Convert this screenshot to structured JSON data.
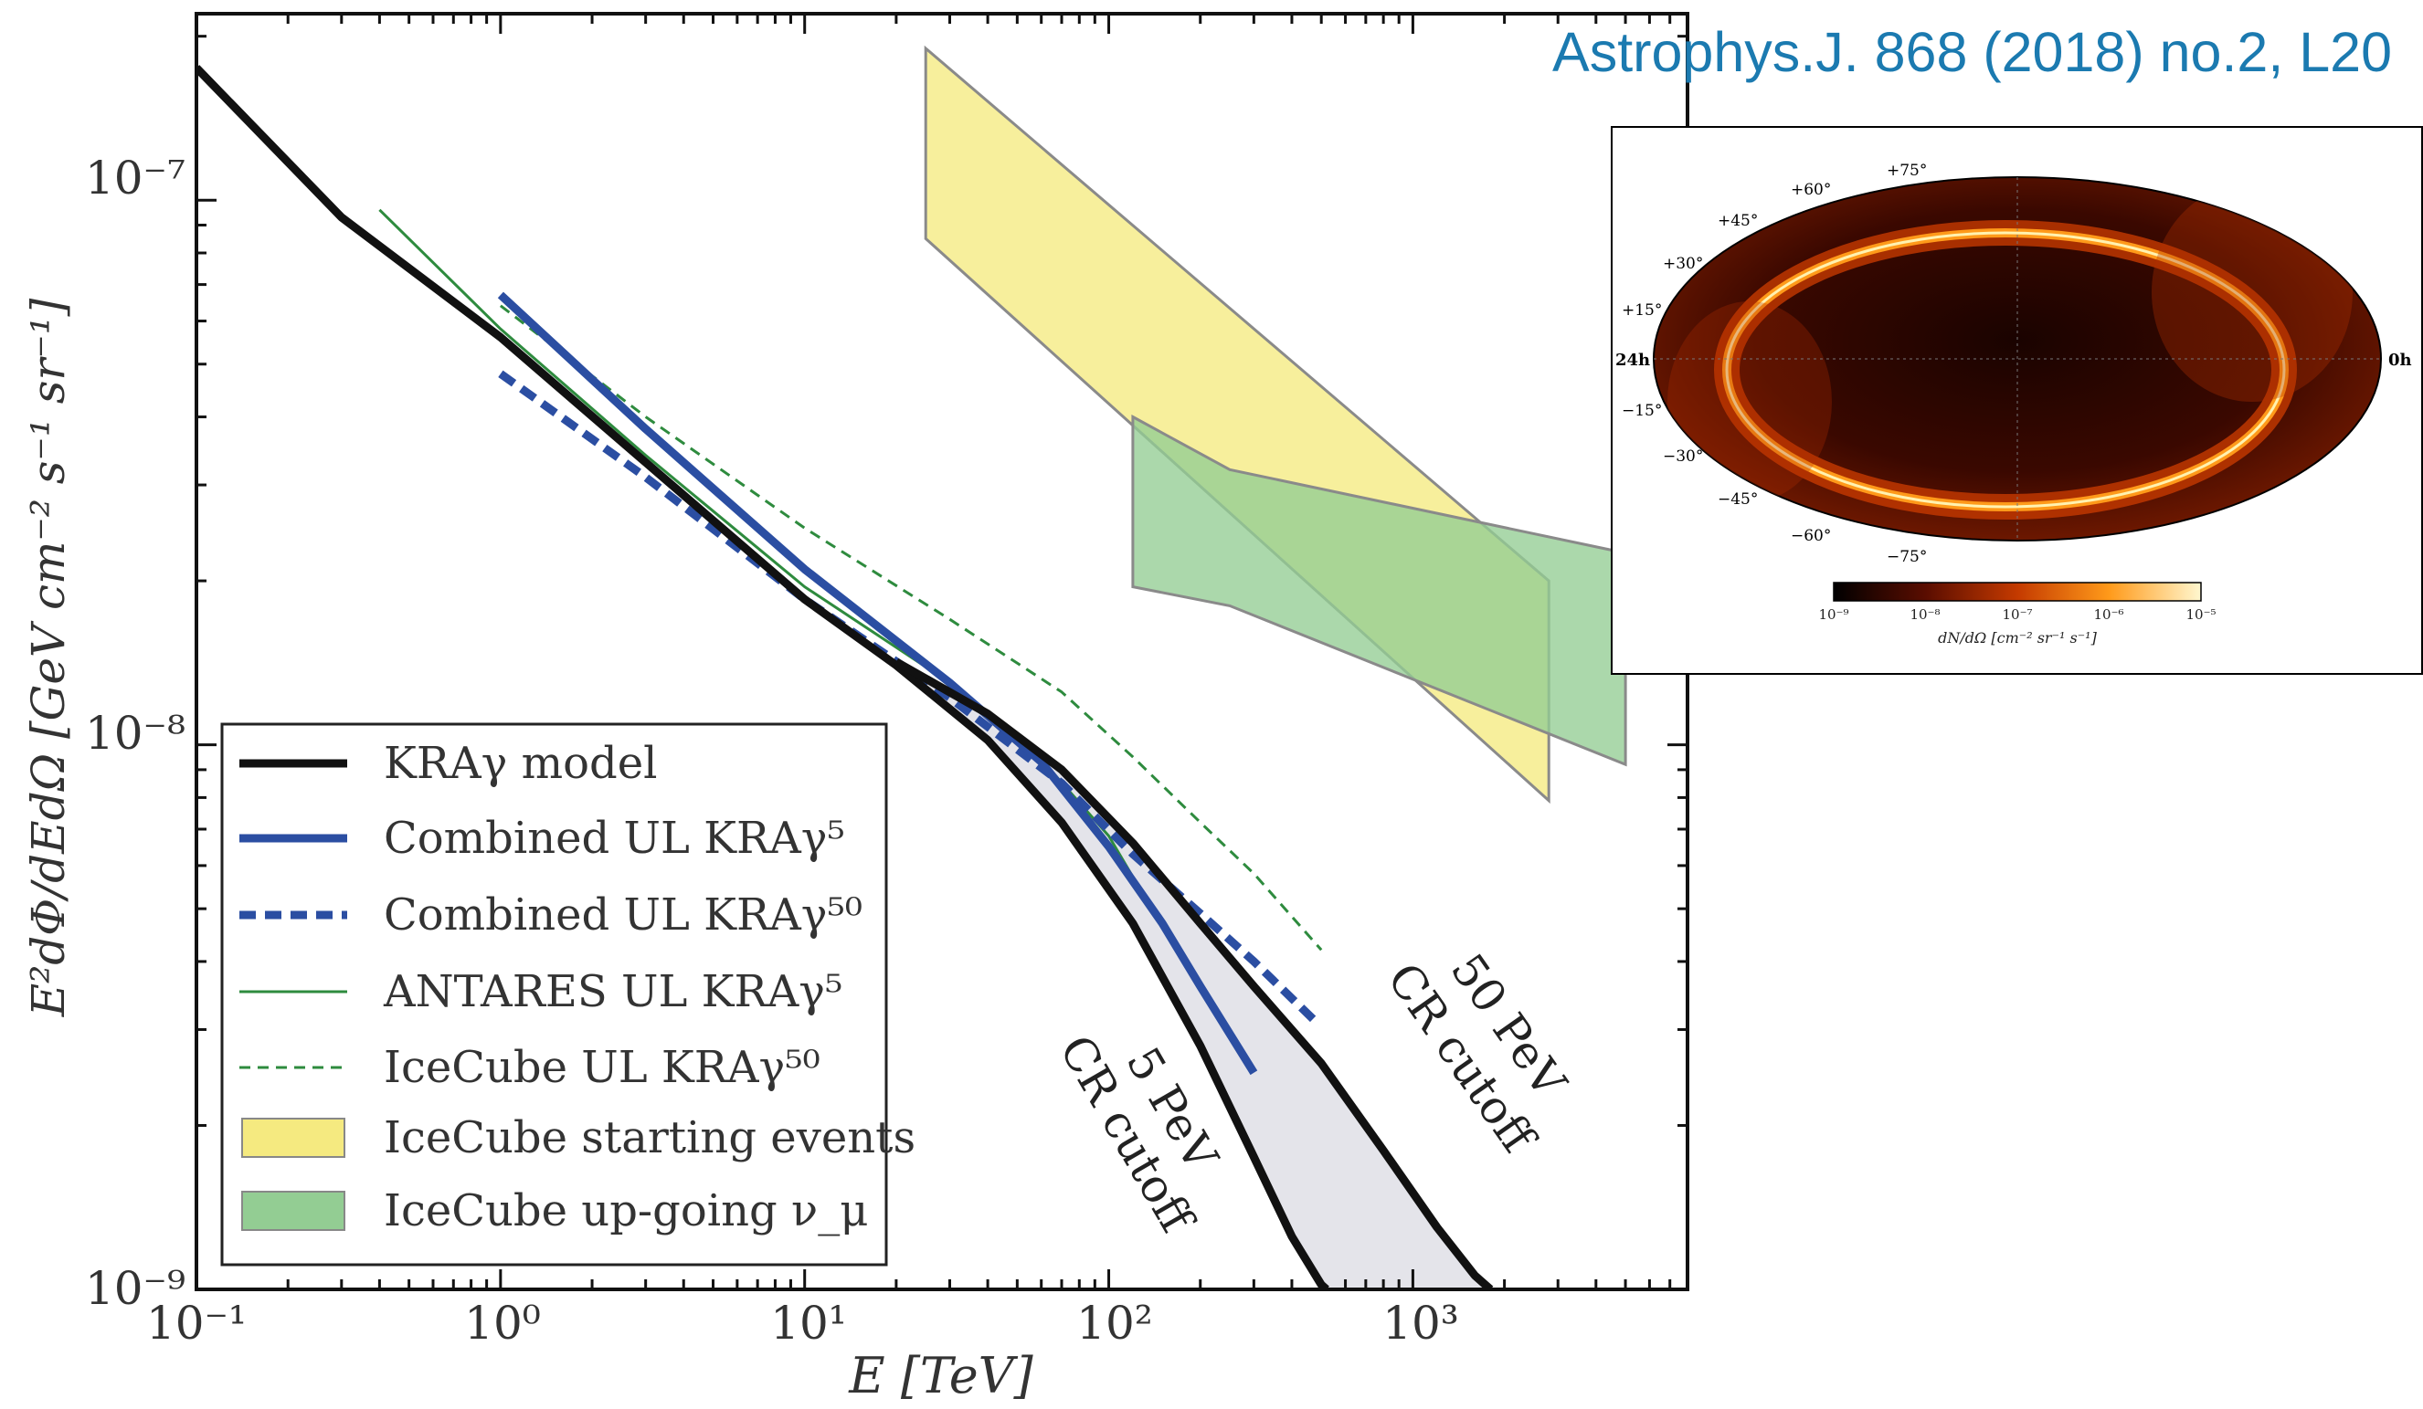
{
  "citation": "Astrophys.J. 868 (2018) no.2, L20",
  "chart_data": [
    {
      "type": "line",
      "xscale": "log",
      "yscale": "log",
      "xlabel": "E [TeV]",
      "ylabel": "E²dΦ/dEdΩ [GeV cm⁻² s⁻¹ sr⁻¹]",
      "xlim": [
        0.1,
        8000
      ],
      "ylim": [
        1e-09,
        2.2e-07
      ],
      "xticks": [
        "10⁻¹",
        "10⁰",
        "10¹",
        "10²",
        "10³"
      ],
      "yticks": [
        "10⁻⁹",
        "10⁻⁸",
        "10⁻⁷"
      ],
      "legend_position": "lower-left",
      "series": [
        {
          "name": "KRAγ model",
          "style": "thick-black",
          "color": "#111111",
          "x": [
            0.1,
            0.3,
            1,
            3,
            10,
            20,
            40,
            70,
            120,
            200,
            300,
            400,
            500,
            520
          ],
          "y": [
            1.75e-07,
            9.3e-08,
            5.6e-08,
            3.3e-08,
            1.85e-08,
            1.4e-08,
            1.02e-08,
            7.2e-09,
            4.7e-09,
            2.8e-09,
            1.75e-09,
            1.25e-09,
            1.02e-09,
            1e-09
          ]
        },
        {
          "name": "KRAγ model (50 PeV CR cutoff)",
          "style": "thick-black",
          "color": "#111111",
          "x": [
            20,
            40,
            70,
            120,
            200,
            300,
            500,
            800,
            1200,
            1600,
            1800
          ],
          "y": [
            1.42e-08,
            1.14e-08,
            9e-09,
            6.6e-09,
            4.7e-09,
            3.6e-09,
            2.6e-09,
            1.8e-09,
            1.3e-09,
            1.06e-09,
            1e-09
          ]
        },
        {
          "name": "Combined UL KRAγ⁵",
          "style": "thick-blue",
          "color": "#2b4ea2",
          "x": [
            1,
            3,
            10,
            30,
            60,
            100,
            150,
            200,
            300
          ],
          "y": [
            6.7e-08,
            3.8e-08,
            2.1e-08,
            1.3e-08,
            9.3e-09,
            6.5e-09,
            4.7e-09,
            3.6e-09,
            2.5e-09
          ]
        },
        {
          "name": "Combined UL KRAγ⁵⁰",
          "style": "thick-dashed-blue",
          "color": "#2b4ea2",
          "x": [
            1,
            3,
            10,
            30,
            70,
            120,
            200,
            300,
            480
          ],
          "y": [
            4.8e-08,
            3.1e-08,
            1.85e-08,
            1.22e-08,
            8.5e-09,
            6.3e-09,
            4.9e-09,
            4e-09,
            3.1e-09
          ]
        },
        {
          "name": "ANTARES UL KRAγ⁵",
          "style": "thin-green",
          "color": "#2e8b3e",
          "x": [
            0.4,
            1,
            3,
            10,
            30,
            60,
            100,
            130
          ],
          "y": [
            9.6e-08,
            5.8e-08,
            3.4e-08,
            1.95e-08,
            1.3e-08,
            9.4e-09,
            6.8e-09,
            5.3e-09
          ]
        },
        {
          "name": "IceCube UL KRAγ⁵⁰",
          "style": "thin-dashed-green",
          "color": "#2e8b3e",
          "x": [
            1,
            3,
            10,
            30,
            70,
            120,
            200,
            300,
            500
          ],
          "y": [
            6.4e-08,
            4e-08,
            2.5e-08,
            1.7e-08,
            1.25e-08,
            9.5e-09,
            7.2e-09,
            5.8e-09,
            4.2e-09
          ]
        }
      ],
      "bands": [
        {
          "name": "IceCube starting events",
          "color": "#f5ea80",
          "upper": {
            "x": [
              25,
              2800
            ],
            "y": [
              1.9e-07,
              2e-08
            ]
          },
          "lower": {
            "x": [
              25,
              2800
            ],
            "y": [
              8.5e-08,
              7.9e-09
            ]
          }
        },
        {
          "name": "IceCube up-going ν_μ",
          "color": "#93cd93",
          "upper": {
            "x": [
              120,
              250,
              5000
            ],
            "y": [
              4e-08,
              3.2e-08,
              2.25e-08
            ]
          },
          "lower": {
            "x": [
              120,
              250,
              5000
            ],
            "y": [
              1.95e-08,
              1.8e-08,
              9.2e-09
            ]
          }
        }
      ],
      "annotations": [
        {
          "text": "5 PeV",
          "text2": "CR cutoff"
        },
        {
          "text": "50 PeV",
          "text2": "CR cutoff"
        }
      ]
    },
    {
      "type": "heatmap",
      "projection": "mollweide",
      "colorbar_label": "dN/dΩ [cm⁻² sr⁻¹ s⁻¹]",
      "colorbar_ticks": [
        "10⁻⁹",
        "10⁻⁸",
        "10⁻⁷",
        "10⁻⁶",
        "10⁻⁵"
      ],
      "ra_labels": [
        "24h",
        "0h"
      ],
      "dec_labels": [
        "+75°",
        "+60°",
        "+45°",
        "+30°",
        "+15°",
        "−15°",
        "−30°",
        "−45°",
        "−60°",
        "−75°"
      ],
      "colors": [
        "#000000",
        "#5a0d00",
        "#c43a00",
        "#ff9a1a",
        "#fff7cf"
      ]
    }
  ]
}
